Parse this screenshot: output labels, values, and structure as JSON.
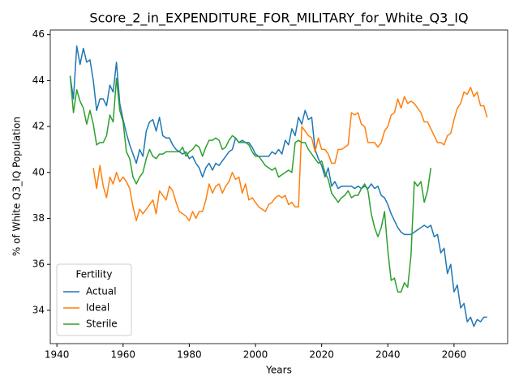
{
  "chart_data": {
    "type": "line",
    "title": "Score_2_in_EXPENDITURE_FOR_MILITARY_for_White_Q3_IQ",
    "x_label": "Years",
    "y_label": "% of White Q3_IQ Population",
    "legend_title": "Fertility",
    "legend_loc": "lower left",
    "xlim": [
      1938,
      2076.2
    ],
    "xticks": [
      1940,
      1960,
      1980,
      2000,
      2020,
      2040,
      2060
    ],
    "ylim": [
      32.55,
      46.2
    ],
    "yticks": [
      34,
      36,
      38,
      40,
      42,
      44,
      46
    ],
    "x": [
      1944,
      1945,
      1946,
      1947,
      1948,
      1949,
      1950,
      1951,
      1952,
      1953,
      1954,
      1955,
      1956,
      1957,
      1958,
      1959,
      1960,
      1961,
      1962,
      1963,
      1964,
      1965,
      1966,
      1967,
      1968,
      1969,
      1970,
      1971,
      1972,
      1973,
      1974,
      1975,
      1976,
      1977,
      1978,
      1979,
      1980,
      1981,
      1982,
      1983,
      1984,
      1985,
      1986,
      1987,
      1988,
      1989,
      1990,
      1991,
      1992,
      1993,
      1994,
      1995,
      1996,
      1997,
      1998,
      1999,
      2000,
      2001,
      2002,
      2003,
      2004,
      2005,
      2006,
      2007,
      2008,
      2009,
      2010,
      2011,
      2012,
      2013,
      2014,
      2015,
      2016,
      2017,
      2018,
      2019,
      2020,
      2021,
      2022,
      2023,
      2024,
      2025,
      2026,
      2027,
      2028,
      2029,
      2030,
      2031,
      2032,
      2033,
      2034,
      2035,
      2036,
      2037,
      2038,
      2039,
      2040,
      2041,
      2042,
      2043,
      2044,
      2045,
      2046,
      2047,
      2048,
      2049,
      2050,
      2051,
      2052,
      2053,
      2054,
      2055,
      2056,
      2057,
      2058,
      2059,
      2060,
      2061,
      2062,
      2063,
      2064,
      2065,
      2066,
      2067,
      2068,
      2069,
      2070
    ],
    "series": [
      {
        "name": "Actual",
        "color": "#1f77b4",
        "values": [
          44.2,
          43.2,
          45.5,
          44.7,
          45.4,
          44.8,
          44.9,
          44.0,
          42.7,
          43.2,
          43.2,
          42.9,
          43.8,
          43.5,
          44.8,
          43.0,
          42.3,
          41.7,
          41.2,
          40.8,
          40.4,
          41.0,
          40.7,
          41.8,
          42.2,
          42.3,
          41.8,
          42.4,
          41.6,
          41.5,
          41.5,
          41.2,
          41.0,
          40.9,
          40.8,
          40.9,
          40.6,
          40.7,
          40.4,
          40.2,
          39.8,
          40.2,
          40.4,
          40.1,
          40.4,
          40.3,
          40.5,
          40.7,
          40.9,
          41.0,
          41.5,
          41.3,
          41.4,
          41.3,
          41.3,
          41.1,
          40.8,
          40.7,
          40.7,
          40.7,
          40.7,
          40.9,
          40.8,
          41.0,
          40.8,
          41.4,
          41.2,
          41.9,
          41.6,
          42.4,
          42.1,
          42.7,
          42.3,
          42.4,
          41.0,
          40.6,
          40.3,
          39.8,
          40.2,
          39.4,
          39.6,
          39.3,
          39.4,
          39.4,
          39.4,
          39.4,
          39.3,
          39.4,
          39.3,
          39.4,
          39.3,
          39.5,
          39.3,
          39.4,
          39.0,
          38.9,
          38.6,
          38.2,
          37.9,
          37.6,
          37.4,
          37.3,
          37.3,
          37.3,
          37.4,
          37.5,
          37.6,
          37.7,
          37.6,
          37.7,
          37.2,
          37.3,
          36.5,
          36.7,
          35.6,
          36.0,
          34.8,
          35.1,
          34.1,
          34.3,
          33.5,
          33.7,
          33.3,
          33.6,
          33.5,
          33.7,
          33.7
        ]
      },
      {
        "name": "Ideal",
        "color": "#ff7f0e",
        "values": [
          null,
          null,
          null,
          null,
          null,
          null,
          null,
          40.2,
          39.3,
          40.3,
          39.4,
          38.9,
          39.8,
          39.5,
          40.0,
          39.6,
          39.8,
          39.6,
          39.3,
          38.5,
          37.9,
          38.4,
          38.2,
          38.4,
          38.6,
          38.8,
          38.2,
          39.2,
          39.0,
          38.8,
          39.4,
          39.2,
          38.7,
          38.3,
          38.2,
          38.1,
          37.9,
          38.3,
          38.0,
          38.3,
          38.3,
          38.8,
          39.5,
          39.1,
          39.4,
          39.5,
          39.1,
          39.4,
          39.6,
          40.0,
          39.7,
          39.8,
          39.1,
          39.5,
          38.8,
          38.9,
          38.7,
          38.5,
          38.4,
          38.3,
          38.6,
          38.7,
          38.9,
          39.0,
          38.9,
          39.0,
          38.6,
          38.7,
          38.5,
          38.5,
          42.0,
          41.8,
          41.6,
          41.5,
          40.9,
          41.5,
          41.0,
          41.0,
          40.8,
          40.4,
          40.4,
          41.0,
          41.0,
          41.1,
          41.2,
          42.6,
          42.5,
          42.6,
          42.1,
          42.0,
          41.3,
          41.3,
          41.3,
          41.1,
          41.3,
          41.8,
          42.0,
          42.5,
          42.6,
          43.2,
          42.8,
          43.3,
          43.0,
          43.1,
          43.0,
          42.8,
          42.6,
          42.2,
          42.2,
          41.9,
          41.6,
          41.3,
          41.3,
          41.2,
          41.6,
          41.7,
          42.3,
          42.8,
          43.0,
          43.5,
          43.4,
          43.7,
          43.3,
          43.5,
          42.9,
          42.9,
          42.4
        ]
      },
      {
        "name": "Sterile",
        "color": "#2ca02c",
        "values": [
          44.2,
          42.6,
          43.6,
          43.1,
          42.8,
          42.1,
          42.7,
          42.1,
          41.2,
          41.3,
          41.3,
          41.6,
          42.5,
          42.2,
          44.1,
          42.7,
          42.2,
          40.9,
          40.6,
          39.8,
          39.5,
          39.8,
          40.0,
          40.6,
          41.0,
          40.7,
          40.6,
          40.8,
          40.8,
          40.9,
          40.9,
          40.9,
          40.9,
          40.9,
          41.1,
          40.7,
          40.9,
          41.0,
          41.2,
          41.1,
          40.7,
          41.1,
          41.4,
          41.4,
          41.5,
          41.4,
          41.0,
          41.1,
          41.4,
          41.6,
          41.5,
          41.3,
          41.3,
          41.3,
          41.2,
          40.9,
          40.7,
          40.7,
          40.5,
          40.3,
          40.2,
          40.1,
          40.2,
          39.8,
          39.9,
          40.0,
          40.1,
          40.0,
          41.3,
          41.4,
          41.3,
          41.3,
          41.0,
          40.8,
          40.6,
          40.4,
          40.5,
          40.0,
          39.7,
          39.1,
          38.9,
          38.7,
          38.9,
          39.0,
          39.2,
          38.9,
          39.0,
          39.0,
          39.3,
          39.5,
          39.2,
          38.2,
          37.6,
          37.2,
          37.6,
          38.3,
          36.6,
          35.3,
          35.4,
          34.8,
          34.8,
          35.2,
          35.0,
          36.4,
          39.6,
          39.4,
          39.6,
          38.7,
          39.2,
          40.2,
          null,
          null,
          null,
          null,
          null,
          null,
          null,
          null,
          null,
          null,
          null,
          null,
          null,
          null,
          null,
          null,
          null
        ]
      }
    ]
  }
}
